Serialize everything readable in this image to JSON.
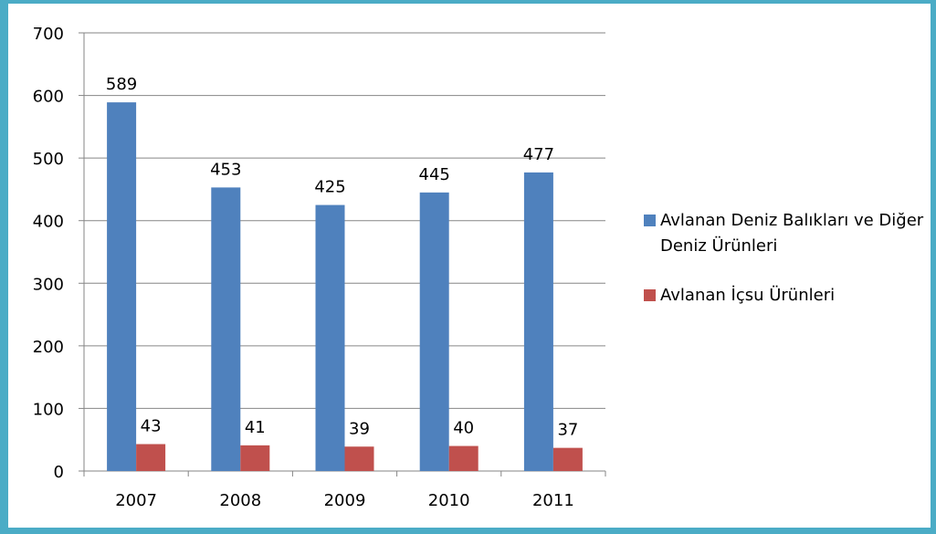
{
  "chart_data": {
    "type": "bar",
    "categories": [
      "2007",
      "2008",
      "2009",
      "2010",
      "2011"
    ],
    "series": [
      {
        "name": "Avlanan Deniz Balıkları ve Diğer Deniz Ürünleri",
        "color": "#4f81bd",
        "values": [
          589,
          453,
          425,
          445,
          477
        ]
      },
      {
        "name": "Avlanan İçsu Ürünleri",
        "color": "#c0504d",
        "values": [
          43,
          41,
          39,
          40,
          37
        ]
      }
    ],
    "ylim": [
      0,
      700
    ],
    "yticks": [
      0,
      100,
      200,
      300,
      400,
      500,
      600,
      700
    ],
    "grid": true,
    "legend": "right"
  }
}
